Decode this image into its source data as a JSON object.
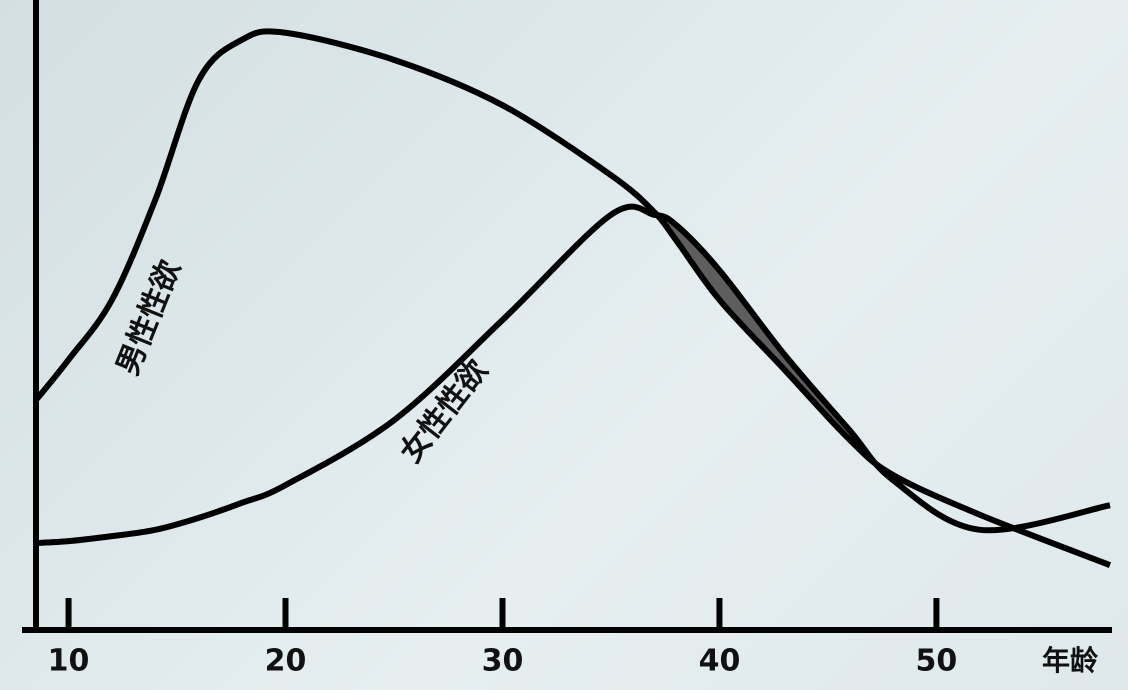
{
  "chart_data": {
    "type": "line",
    "x": [
      8.5,
      10,
      12,
      14,
      16,
      18,
      20,
      25,
      30,
      35,
      37,
      38,
      40,
      43,
      46,
      48,
      52,
      58
    ],
    "series": [
      {
        "name": "男性性欲",
        "color": "#000000",
        "values": [
          36.5,
          42.9,
          52.4,
          68.3,
          87.3,
          93.7,
          94.8,
          90.5,
          83.3,
          72.2,
          66.3,
          61.9,
          52.4,
          41.3,
          30.2,
          24.6,
          18.3,
          10.3
        ]
      },
      {
        "name": "女性性欲",
        "color": "#000000",
        "values": [
          13.8,
          14.1,
          14.9,
          15.9,
          17.8,
          20.2,
          23.0,
          33.3,
          49.2,
          65.9,
          65.9,
          64.3,
          57.1,
          43.7,
          31.7,
          23.8,
          15.9,
          19.8
        ]
      }
    ],
    "xlabel": "年龄",
    "xlim": [
      8.5,
      58
    ],
    "xticks": [
      10,
      20,
      30,
      40,
      50
    ],
    "ylim": [
      0,
      100
    ],
    "fill_between_color": "#5e5e5e"
  }
}
